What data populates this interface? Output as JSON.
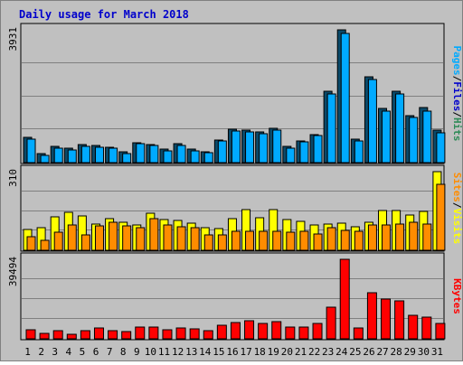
{
  "chart_data": {
    "type": "bar",
    "title": "Daily usage for March 2018",
    "categories": [
      "1",
      "2",
      "3",
      "4",
      "5",
      "6",
      "7",
      "8",
      "9",
      "10",
      "11",
      "12",
      "13",
      "14",
      "15",
      "16",
      "17",
      "18",
      "19",
      "20",
      "21",
      "22",
      "23",
      "24",
      "25",
      "26",
      "27",
      "28",
      "29",
      "30",
      "31"
    ],
    "weekend_days": [
      "3",
      "4",
      "10",
      "11",
      "17",
      "18",
      "24",
      "25",
      "31"
    ],
    "panels": [
      {
        "ymax_label": "3931",
        "ylim": [
          0,
          3931
        ],
        "side_labels": [
          {
            "text": "Pages",
            "color": "#00aaff"
          },
          {
            "text": "/",
            "color": "#000000"
          },
          {
            "text": "Files",
            "color": "#0000cc"
          },
          {
            "text": "/",
            "color": "#000000"
          },
          {
            "text": "Hits",
            "color": "#2e8b57"
          }
        ],
        "series": [
          {
            "name": "Hits",
            "color": "#0a4a6a",
            "values": [
              760,
              270,
              480,
              420,
              530,
              500,
              460,
              320,
              600,
              540,
              400,
              560,
              400,
              330,
              680,
              980,
              960,
              900,
              1010,
              480,
              650,
              830,
              2120,
              3930,
              700,
              2550,
              1600,
              2100,
              1400,
              1620,
              950
            ]
          },
          {
            "name": "Files",
            "color": "#00aaff",
            "values": [
              700,
              220,
              440,
              380,
              490,
              460,
              420,
              270,
              560,
              500,
              360,
              510,
              360,
              290,
              640,
              940,
              920,
              860,
              960,
              440,
              610,
              790,
              2040,
              3820,
              650,
              2470,
              1520,
              2020,
              1330,
              1530,
              880
            ]
          }
        ]
      },
      {
        "ymax_label": "310",
        "ylim": [
          0,
          310
        ],
        "side_labels": [
          {
            "text": "Sites",
            "color": "#ff8c00"
          },
          {
            "text": "/",
            "color": "#000000"
          },
          {
            "text": "Visits",
            "color": "#ffff00"
          }
        ],
        "series": [
          {
            "name": "Visits",
            "color": "#ffff00",
            "values": [
              82,
              90,
              132,
              148,
              135,
              102,
              125,
              112,
              100,
              147,
              120,
              116,
              108,
              88,
              85,
              126,
              162,
              128,
              160,
              120,
              114,
              100,
              104,
              108,
              92,
              110,
              156,
              155,
              140,
              152,
              310
            ]
          },
          {
            "name": "Sites",
            "color": "#ff8c00",
            "values": [
              52,
              40,
              70,
              100,
              60,
              95,
              110,
              95,
              90,
              125,
              98,
              92,
              88,
              62,
              62,
              74,
              74,
              74,
              74,
              72,
              74,
              65,
              90,
              80,
              74,
              100,
              100,
              103,
              110,
              105,
              260
            ]
          }
        ]
      },
      {
        "ymax_label": "39494",
        "ylim": [
          0,
          39494
        ],
        "side_labels": [
          {
            "text": "KBytes",
            "color": "#ff0000"
          }
        ],
        "series": [
          {
            "name": "KBytes",
            "color": "#ff0000",
            "values": [
              4700,
              2900,
              3900,
              2400,
              4000,
              5300,
              4000,
              3400,
              5900,
              5900,
              4700,
              5400,
              4900,
              4000,
              6900,
              8000,
              9200,
              7600,
              8500,
              5900,
              5900,
              7700,
              15800,
              39494,
              5400,
              23000,
              19800,
              19000,
              11500,
              10800,
              7600
            ]
          }
        ]
      }
    ]
  }
}
